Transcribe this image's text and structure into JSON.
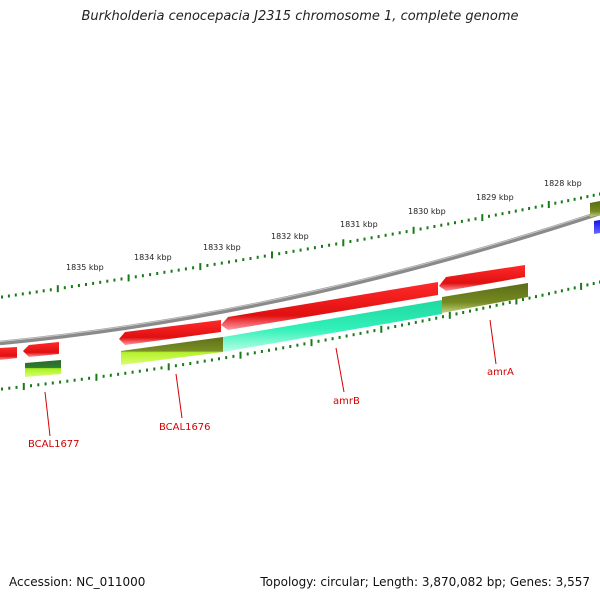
{
  "title": "Burkholderia cenocepacia J2315 chromosome 1, complete genome",
  "footer": {
    "accession": "Accession: NC_011000",
    "topology": "Topology: circular; Length: 3,870,082 bp; Genes: 3,557"
  },
  "ruler": {
    "labels": [
      "1835 kbp",
      "1834 kbp",
      "1833 kbp",
      "1832 kbp",
      "1831 kbp",
      "1830 kbp",
      "1829 kbp",
      "1828 kbp"
    ]
  },
  "gene_labels": [
    "BCAL1677",
    "BCAL1676",
    "amrB",
    "amrA"
  ],
  "colors": {
    "cds_red": "#ee1111",
    "backbone": "#888888",
    "tick_green": "#1a7a1a",
    "label_red": "#d40000",
    "olive": "#6b7f1e",
    "lime": "#a8f01e",
    "aqua": "#22e0a8",
    "dark_green": "#2a6b2a",
    "blue": "#1010ee"
  }
}
